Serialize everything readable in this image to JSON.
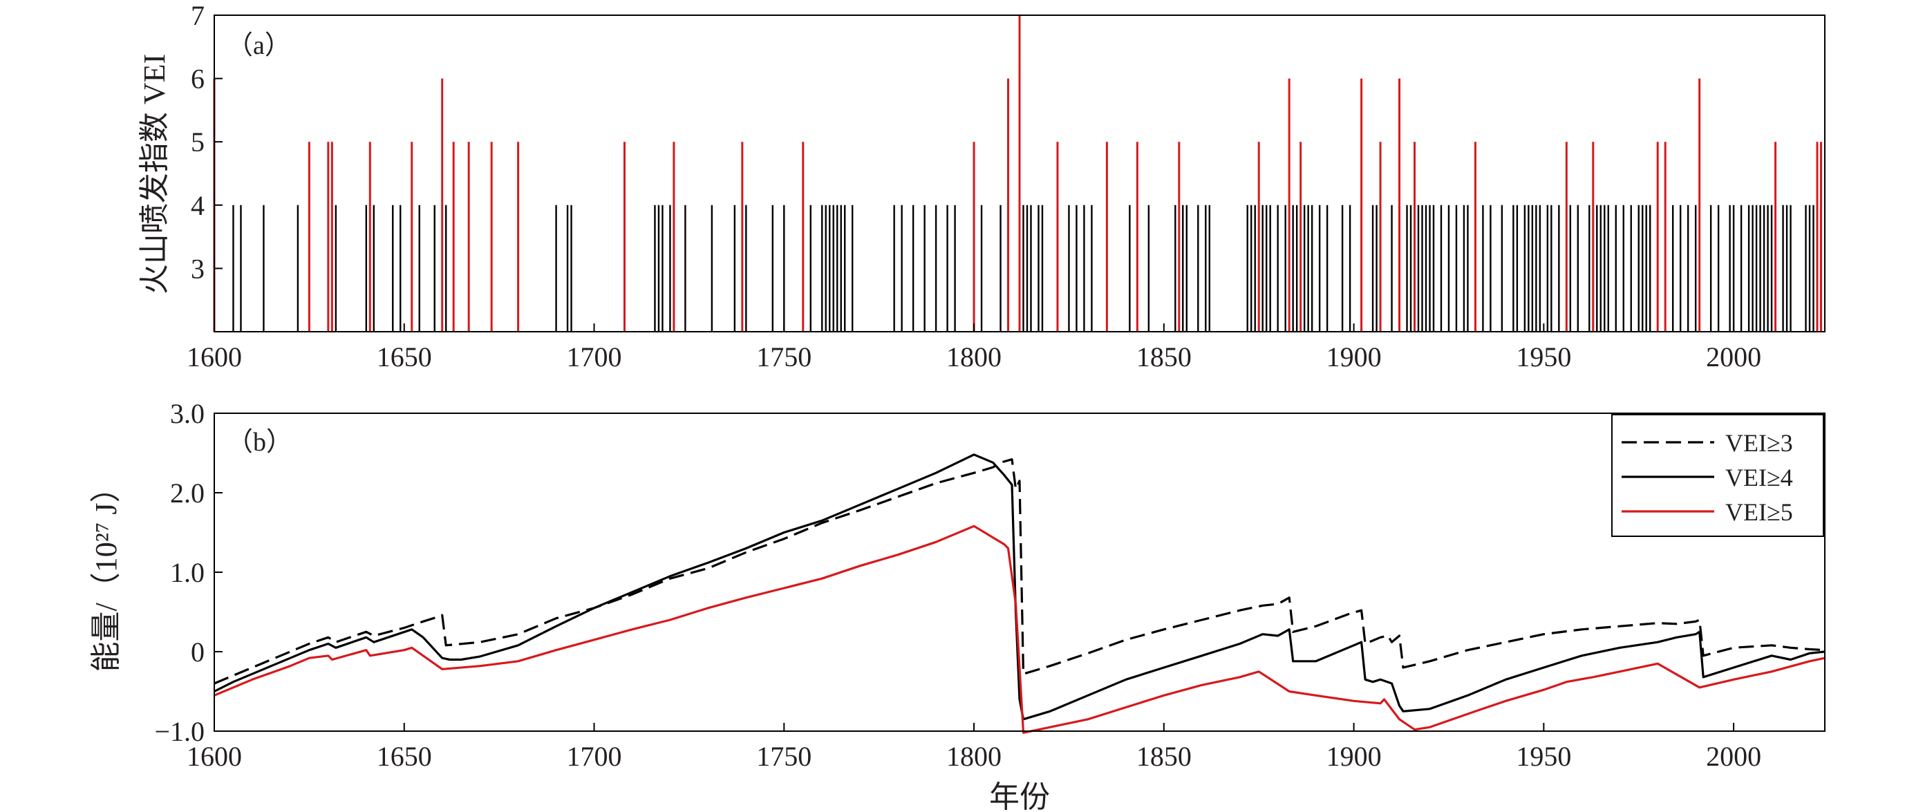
{
  "colors": {
    "red": "#d7191c",
    "black": "#000000",
    "text": "#231f20"
  },
  "chart_data": [
    {
      "type": "bar",
      "panel_label": "（a）",
      "ylabel": "火山喷发指数 VEI",
      "xlabel": "",
      "xlim": [
        1600,
        2024
      ],
      "ylim": [
        2,
        7
      ],
      "xticks": [
        "1600",
        "1650",
        "1700",
        "1750",
        "1800",
        "1850",
        "1900",
        "1950",
        "2000"
      ],
      "yticks": [
        "3",
        "4",
        "5",
        "6",
        "7"
      ],
      "grid": false,
      "series": [
        {
          "color": "#000000",
          "x": [
            1605,
            1607,
            1613,
            1622,
            1630,
            1632,
            1640,
            1642,
            1647,
            1649,
            1654,
            1658,
            1660,
            1661,
            1690,
            1693,
            1694,
            1708,
            1716,
            1717,
            1718,
            1720,
            1724,
            1731,
            1737,
            1740,
            1747,
            1750,
            1757,
            1760,
            1761,
            1762,
            1763,
            1764,
            1765,
            1766,
            1768,
            1779,
            1781,
            1784,
            1787,
            1790,
            1793,
            1795,
            1800,
            1802,
            1807,
            1812,
            1813,
            1814,
            1815,
            1817,
            1818,
            1822,
            1825,
            1827,
            1829,
            1831,
            1841,
            1846,
            1853,
            1854,
            1855,
            1856,
            1859,
            1861,
            1862,
            1872,
            1873,
            1874,
            1876,
            1877,
            1878,
            1880,
            1882,
            1884,
            1885,
            1887,
            1888,
            1889,
            1891,
            1893,
            1897,
            1899,
            1902,
            1905,
            1906,
            1910,
            1912,
            1914,
            1915,
            1917,
            1918,
            1919,
            1920,
            1921,
            1923,
            1925,
            1927,
            1929,
            1930,
            1932,
            1934,
            1936,
            1939,
            1942,
            1943,
            1945,
            1946,
            1947,
            1948,
            1949,
            1951,
            1952,
            1954,
            1957,
            1959,
            1962,
            1964,
            1965,
            1966,
            1967,
            1969,
            1971,
            1973,
            1975,
            1976,
            1977,
            1978,
            1982,
            1984,
            1986,
            1988,
            1990,
            1994,
            1996,
            1999,
            2000,
            2002,
            2004,
            2005,
            2006,
            2007,
            2008,
            2009,
            2010,
            2013,
            2014,
            2015,
            2019,
            2020,
            2021,
            2022
          ],
          "y": [
            4,
            4,
            4,
            4,
            4,
            4,
            4,
            4,
            4,
            4,
            4,
            4,
            4,
            4,
            4,
            4,
            4,
            4,
            4,
            4,
            4,
            4,
            4,
            4,
            4,
            4,
            4,
            4,
            4,
            4,
            4,
            4,
            4,
            4,
            4,
            4,
            4,
            4,
            4,
            4,
            4,
            4,
            4,
            4,
            4,
            4,
            4,
            4,
            4,
            4,
            4,
            4,
            4,
            4,
            4,
            4,
            4,
            4,
            4,
            4,
            4,
            4,
            4,
            4,
            4,
            4,
            4,
            4,
            4,
            4,
            4,
            4,
            4,
            4,
            4,
            4,
            4,
            4,
            4,
            4,
            4,
            4,
            4,
            4,
            4,
            4,
            4,
            4,
            4,
            4,
            4,
            4,
            4,
            4,
            4,
            4,
            4,
            4,
            4,
            4,
            4,
            4,
            4,
            4,
            4,
            4,
            4,
            4,
            4,
            4,
            4,
            4,
            4,
            4,
            4,
            4,
            4,
            4,
            4,
            4,
            4,
            4,
            4,
            4,
            4,
            4,
            4,
            4,
            4,
            4,
            4,
            4,
            4,
            4,
            4,
            4,
            4,
            4,
            4,
            4,
            4,
            4,
            4,
            4,
            4,
            4,
            4,
            4,
            4,
            4,
            4,
            4,
            4
          ]
        },
        {
          "color": "#d7191c",
          "x": [
            1600,
            1625,
            1630,
            1631,
            1641,
            1652,
            1660,
            1663,
            1667,
            1673,
            1680,
            1708,
            1721,
            1739,
            1755,
            1800,
            1809,
            1812,
            1822,
            1835,
            1843,
            1854,
            1875,
            1883,
            1886,
            1902,
            1907,
            1912,
            1916,
            1932,
            1956,
            1963,
            1980,
            1982,
            1991,
            2011,
            2022,
            2023
          ],
          "y": [
            6,
            5,
            5,
            5,
            5,
            5,
            6,
            5,
            5,
            5,
            5,
            5,
            5,
            5,
            5,
            5,
            6,
            7,
            5,
            5,
            5,
            5,
            5,
            6,
            5,
            6,
            5,
            6,
            5,
            5,
            5,
            5,
            5,
            5,
            6,
            5,
            5,
            5
          ]
        }
      ]
    },
    {
      "type": "line",
      "panel_label": "（b）",
      "ylabel": "能量/（10²⁷ J）",
      "xlabel": "年份",
      "xlim": [
        1600,
        2024
      ],
      "ylim": [
        -1.0,
        3.0
      ],
      "xticks": [
        "1600",
        "1650",
        "1700",
        "1750",
        "1800",
        "1850",
        "1900",
        "1950",
        "2000"
      ],
      "yticks": [
        "−1.0",
        "0",
        "1.0",
        "2.0",
        "3.0"
      ],
      "grid": false,
      "legend_position": "top-right",
      "series": [
        {
          "name": "VEI≥3",
          "dash": "dashed",
          "color": "#000000",
          "x": [
            1600,
            1605,
            1615,
            1625,
            1630,
            1632,
            1640,
            1642,
            1650,
            1655,
            1659,
            1660,
            1661,
            1670,
            1680,
            1690,
            1700,
            1710,
            1720,
            1730,
            1740,
            1750,
            1760,
            1770,
            1780,
            1790,
            1800,
            1805,
            1807,
            1810,
            1811,
            1812,
            1813,
            1820,
            1830,
            1840,
            1850,
            1860,
            1870,
            1876,
            1880,
            1883,
            1884,
            1890,
            1899,
            1902,
            1903,
            1907,
            1909,
            1910,
            1912,
            1913,
            1920,
            1930,
            1940,
            1950,
            1960,
            1970,
            1980,
            1985,
            1990,
            1991,
            1992,
            2000,
            2010,
            2015,
            2020,
            2024
          ],
          "y": [
            -0.4,
            -0.3,
            -0.1,
            0.1,
            0.18,
            0.12,
            0.25,
            0.2,
            0.3,
            0.38,
            0.44,
            0.46,
            0.08,
            0.12,
            0.22,
            0.42,
            0.55,
            0.72,
            0.92,
            1.05,
            1.25,
            1.42,
            1.62,
            1.78,
            1.95,
            2.12,
            2.25,
            2.32,
            2.38,
            2.42,
            2.05,
            2.15,
            -0.28,
            -0.18,
            -0.02,
            0.15,
            0.28,
            0.4,
            0.52,
            0.58,
            0.6,
            0.68,
            0.25,
            0.32,
            0.48,
            0.52,
            0.1,
            0.18,
            0.2,
            0.12,
            0.2,
            -0.2,
            -0.12,
            0.02,
            0.12,
            0.22,
            0.28,
            0.32,
            0.36,
            0.35,
            0.38,
            0.4,
            -0.05,
            0.05,
            0.08,
            0.05,
            0.03,
            0.02
          ]
        },
        {
          "name": "VEI≥4",
          "dash": "solid",
          "color": "#000000",
          "x": [
            1600,
            1605,
            1615,
            1625,
            1630,
            1632,
            1640,
            1642,
            1652,
            1655,
            1660,
            1662,
            1665,
            1670,
            1680,
            1690,
            1700,
            1710,
            1720,
            1730,
            1740,
            1750,
            1760,
            1770,
            1780,
            1790,
            1800,
            1805,
            1808,
            1810,
            1811,
            1812,
            1813,
            1820,
            1830,
            1840,
            1850,
            1860,
            1870,
            1876,
            1880,
            1883,
            1884,
            1890,
            1902,
            1903,
            1905,
            1907,
            1910,
            1912,
            1913,
            1920,
            1930,
            1940,
            1950,
            1960,
            1970,
            1980,
            1985,
            1990,
            1991,
            1992,
            2000,
            2010,
            2015,
            2020,
            2024
          ],
          "y": [
            -0.5,
            -0.38,
            -0.18,
            0.02,
            0.1,
            0.05,
            0.18,
            0.12,
            0.28,
            0.18,
            -0.08,
            -0.1,
            -0.1,
            -0.06,
            0.08,
            0.32,
            0.55,
            0.75,
            0.95,
            1.12,
            1.3,
            1.5,
            1.65,
            1.85,
            2.05,
            2.25,
            2.48,
            2.38,
            2.22,
            2.1,
            0.5,
            -0.6,
            -0.85,
            -0.75,
            -0.55,
            -0.35,
            -0.2,
            -0.05,
            0.1,
            0.22,
            0.2,
            0.28,
            -0.12,
            -0.12,
            0.12,
            -0.35,
            -0.38,
            -0.35,
            -0.4,
            -0.68,
            -0.75,
            -0.72,
            -0.55,
            -0.35,
            -0.2,
            -0.05,
            0.05,
            0.12,
            0.18,
            0.22,
            0.25,
            -0.32,
            -0.2,
            -0.05,
            -0.1,
            -0.02,
            0.0
          ]
        },
        {
          "name": "VEI≥5",
          "dash": "solid",
          "color": "#d7191c",
          "x": [
            1600,
            1610,
            1620,
            1625,
            1630,
            1631,
            1640,
            1641,
            1650,
            1652,
            1660,
            1670,
            1680,
            1690,
            1700,
            1710,
            1720,
            1730,
            1740,
            1750,
            1760,
            1770,
            1780,
            1790,
            1800,
            1808,
            1809,
            1811,
            1812,
            1813,
            1820,
            1830,
            1840,
            1850,
            1860,
            1870,
            1875,
            1883,
            1890,
            1900,
            1907,
            1908,
            1912,
            1916,
            1920,
            1932,
            1940,
            1950,
            1956,
            1963,
            1970,
            1980,
            1991,
            2000,
            2010,
            2020,
            2024
          ],
          "y": [
            -0.55,
            -0.35,
            -0.18,
            -0.08,
            -0.05,
            -0.1,
            0.02,
            -0.05,
            0.02,
            0.05,
            -0.22,
            -0.18,
            -0.12,
            0.02,
            0.15,
            0.28,
            0.4,
            0.55,
            0.68,
            0.8,
            0.92,
            1.08,
            1.22,
            1.38,
            1.58,
            1.35,
            1.3,
            0.6,
            -0.2,
            -1.02,
            -0.95,
            -0.85,
            -0.7,
            -0.55,
            -0.42,
            -0.32,
            -0.25,
            -0.5,
            -0.55,
            -0.62,
            -0.65,
            -0.6,
            -0.85,
            -0.98,
            -0.95,
            -0.75,
            -0.62,
            -0.48,
            -0.38,
            -0.32,
            -0.25,
            -0.15,
            -0.45,
            -0.35,
            -0.25,
            -0.12,
            -0.08
          ]
        }
      ]
    }
  ]
}
